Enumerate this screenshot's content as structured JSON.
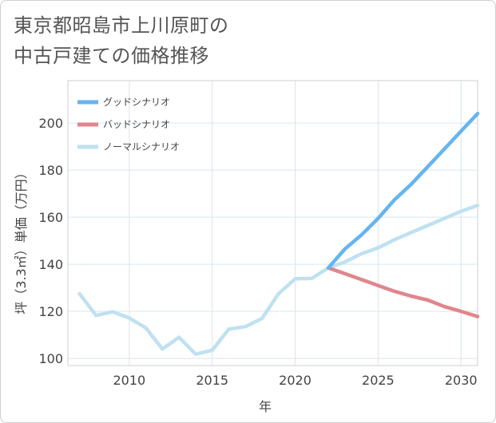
{
  "title_lines": [
    "東京都昭島市上川原町の",
    "中古戸建ての価格推移"
  ],
  "chart_data": {
    "type": "line",
    "xlabel": "年",
    "ylabel": "坪（3.3㎡）単価（万円）",
    "xlim": [
      2006.3,
      2031
    ],
    "ylim": [
      97,
      218
    ],
    "x_ticks": [
      2010,
      2015,
      2020,
      2025,
      2030
    ],
    "y_ticks": [
      100,
      120,
      140,
      160,
      180,
      200
    ],
    "grid": true,
    "legend_position": "top-left",
    "series": [
      {
        "name": "グッドシナリオ",
        "color": "#64b5f0",
        "x": [
          2022,
          2023,
          2024,
          2025,
          2026,
          2027,
          2028,
          2029,
          2030,
          2031
        ],
        "values": [
          138.5,
          146.5,
          152.5,
          159.5,
          167.5,
          174.0,
          181.5,
          189.0,
          196.5,
          204.0
        ]
      },
      {
        "name": "バッドシナリオ",
        "color": "#e0868c",
        "x": [
          2022,
          2023,
          2024,
          2025,
          2026,
          2027,
          2028,
          2029,
          2030,
          2031
        ],
        "values": [
          138.5,
          136.0,
          133.5,
          131.0,
          128.5,
          126.5,
          124.8,
          122.0,
          120.0,
          117.8
        ]
      },
      {
        "name": "ノーマルシナリオ",
        "color": "#bfe1f0",
        "x": [
          2007,
          2008,
          2009,
          2010,
          2011,
          2012,
          2013,
          2014,
          2015,
          2016,
          2017,
          2018,
          2019,
          2020,
          2021,
          2022,
          2023,
          2024,
          2025,
          2026,
          2027,
          2028,
          2029,
          2030,
          2031
        ],
        "values": [
          127.5,
          118.3,
          119.8,
          117.2,
          113.0,
          104.0,
          109.0,
          101.8,
          103.5,
          112.5,
          113.5,
          117.0,
          127.5,
          133.8,
          134.0,
          138.5,
          141.0,
          144.5,
          147.0,
          150.5,
          153.5,
          156.5,
          159.5,
          162.5,
          165.0
        ]
      }
    ]
  }
}
